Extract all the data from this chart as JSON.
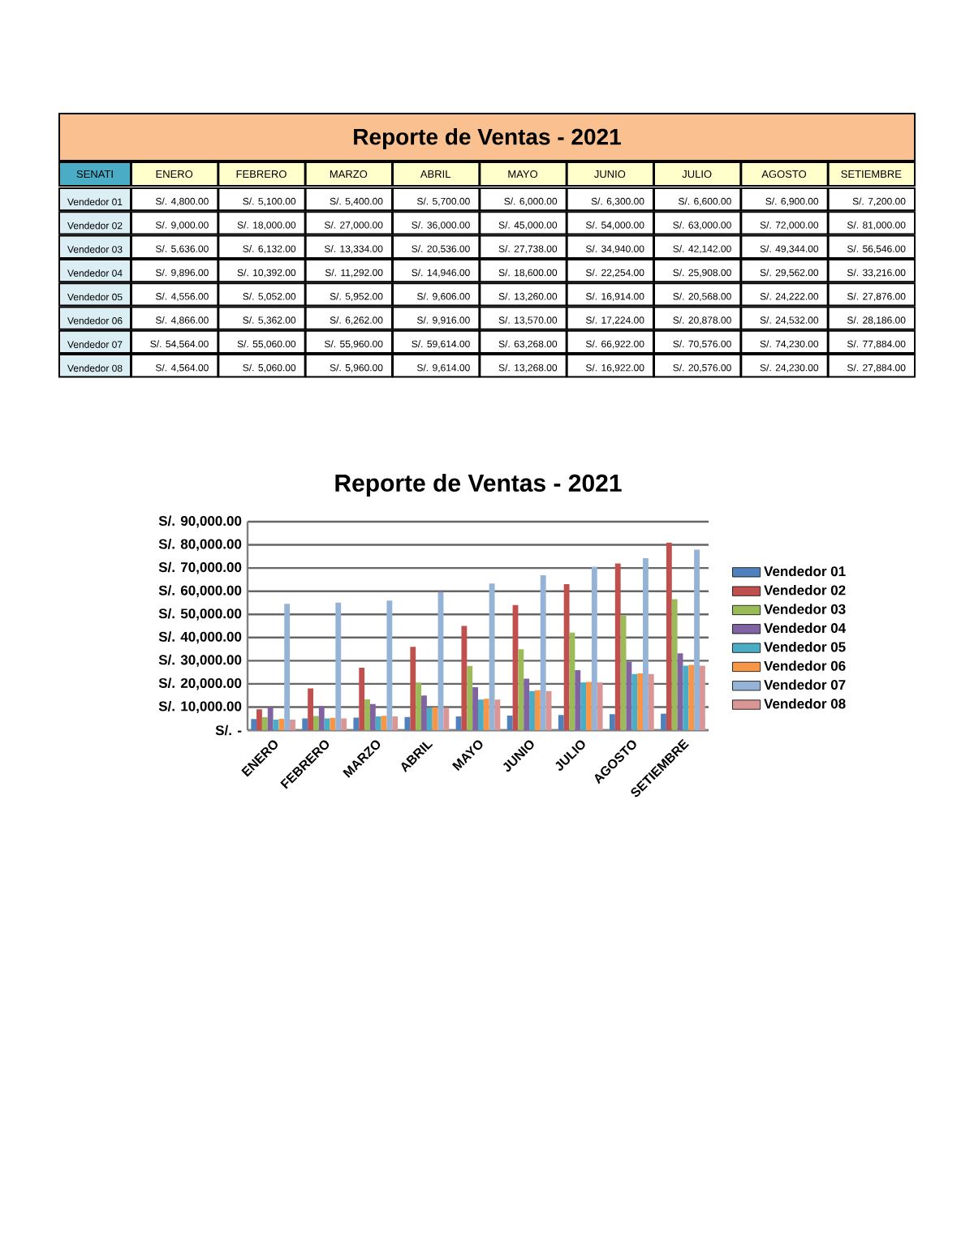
{
  "chart_data": {
    "type": "bar",
    "title": "Reporte de Ventas - 2021",
    "annotations": [
      "Reporte de Ventas - 2021",
      "SENATI",
      "S/. 4,800.00",
      "S/. 5,100.00",
      "S/. 5,400.00",
      "S/. 5,700.00",
      "S/. 6,000.00",
      "S/. 6,300.00",
      "S/. 6,600.00",
      "S/. 6,900.00",
      "S/. 7,200.00",
      "S/. 9,000.00",
      "S/. 18,000.00",
      "S/. 27,000.00",
      "S/. 36,000.00",
      "S/. 45,000.00",
      "S/. 54,000.00",
      "S/. 63,000.00",
      "S/. 72,000.00",
      "S/. 81,000.00",
      "S/. 5,636.00",
      "S/. 6,132.00",
      "S/. 13,334.00",
      "S/. 20,536.00",
      "S/. 27,738.00",
      "S/. 34,940.00",
      "S/. 42,142.00",
      "S/. 49,344.00",
      "S/. 56,546.00",
      "S/. 9,896.00",
      "S/. 10,392.00",
      "S/. 11,292.00",
      "S/. 14,946.00",
      "S/. 18,600.00",
      "S/. 22,254.00",
      "S/. 25,908.00",
      "S/. 29,562.00",
      "S/. 33,216.00",
      "S/. 4,556.00",
      "S/. 5,052.00",
      "S/. 5,952.00",
      "S/. 9,606.00",
      "S/. 13,260.00",
      "S/. 16,914.00",
      "S/. 20,568.00",
      "S/. 24,222.00",
      "S/. 27,876.00",
      "S/. 4,866.00",
      "S/. 5,362.00",
      "S/. 6,262.00",
      "S/. 9,916.00",
      "S/. 13,570.00",
      "S/. 17,224.00",
      "S/. 20,878.00",
      "S/. 24,532.00",
      "S/. 28,186.00",
      "S/. 54,564.00",
      "S/. 55,060.00",
      "S/. 55,960.00",
      "S/. 59,614.00",
      "S/. 63,268.00",
      "S/. 66,922.00",
      "S/. 70,576.00",
      "S/. 74,230.00",
      "S/. 77,884.00",
      "S/. 4,564.00",
      "S/. 5,060.00",
      "S/. 5,960.00",
      "S/. 9,614.00",
      "S/. 13,268.00",
      "S/. 16,922.00",
      "S/. 20,576.00",
      "S/. 24,230.00",
      "S/. 27,884.00"
    ],
    "categories": [
      "ENERO",
      "FEBRERO",
      "MARZO",
      "ABRIL",
      "MAYO",
      "JUNIO",
      "JULIO",
      "AGOSTO",
      "SETIEMBRE"
    ],
    "series": [
      {
        "name": "Vendedor 01",
        "color": "#4f81bd",
        "values": [
          4800,
          5100,
          5400,
          5700,
          6000,
          6300,
          6600,
          6900,
          7200
        ]
      },
      {
        "name": "Vendedor 02",
        "color": "#c0504d",
        "values": [
          9000,
          18000,
          27000,
          36000,
          45000,
          54000,
          63000,
          72000,
          81000
        ]
      },
      {
        "name": "Vendedor 03",
        "color": "#9bbb59",
        "values": [
          5636,
          6132,
          13334,
          20536,
          27738,
          34940,
          42142,
          49344,
          56546
        ]
      },
      {
        "name": "Vendedor 04",
        "color": "#8064a2",
        "values": [
          9896,
          10392,
          11292,
          14946,
          18600,
          22254,
          25908,
          29562,
          33216
        ]
      },
      {
        "name": "Vendedor 05",
        "color": "#4bacc6",
        "values": [
          4556,
          5052,
          5952,
          9606,
          13260,
          16914,
          20568,
          24222,
          27876
        ]
      },
      {
        "name": "Vendedor 06",
        "color": "#f79646",
        "values": [
          4866,
          5362,
          6262,
          9916,
          13570,
          17224,
          20878,
          24532,
          28186
        ]
      },
      {
        "name": "Vendedor 07",
        "color": "#95b3d7",
        "values": [
          54564,
          55060,
          55960,
          59614,
          63268,
          66922,
          70576,
          74230,
          77884
        ]
      },
      {
        "name": "Vendedor 08",
        "color": "#d99694",
        "values": [
          4564,
          5060,
          5960,
          9614,
          13268,
          16922,
          20576,
          24230,
          27884
        ]
      }
    ],
    "ylim": [
      0,
      90000
    ],
    "yticks": [
      {
        "value": 0,
        "label": "S/. -"
      },
      {
        "value": 10000,
        "label": "S/. 10,000.00"
      },
      {
        "value": 20000,
        "label": "S/. 20,000.00"
      },
      {
        "value": 30000,
        "label": "S/. 30,000.00"
      },
      {
        "value": 40000,
        "label": "S/. 40,000.00"
      },
      {
        "value": 50000,
        "label": "S/. 50,000.00"
      },
      {
        "value": 60000,
        "label": "S/. 60,000.00"
      },
      {
        "value": 70000,
        "label": "S/. 70,000.00"
      },
      {
        "value": 80000,
        "label": "S/. 80,000.00"
      },
      {
        "value": 90000,
        "label": "S/. 90,000.00"
      }
    ],
    "grid": "y",
    "legend": "right"
  }
}
